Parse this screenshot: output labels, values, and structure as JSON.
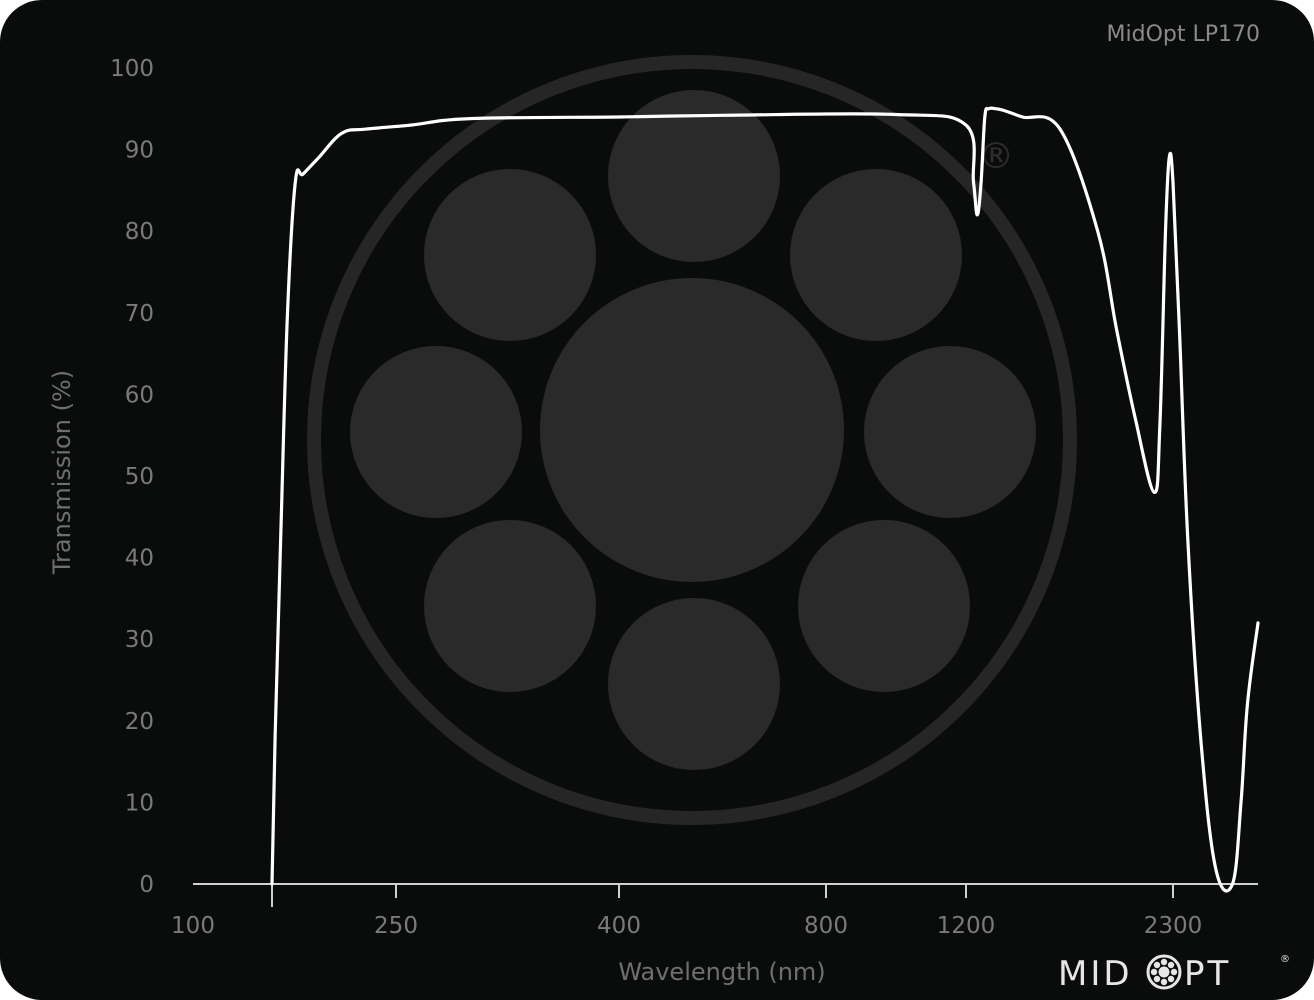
{
  "chart_data": {
    "type": "line",
    "title": "MidOpt LP170",
    "xlabel": "Wavelength (nm)",
    "ylabel": "Transmission (%)",
    "x_ticks": [
      "100",
      "250",
      "400",
      "800",
      "1200",
      "2300"
    ],
    "y_ticks": [
      "0",
      "10",
      "20",
      "30",
      "40",
      "50",
      "60",
      "70",
      "80",
      "90",
      "100"
    ],
    "ylim": [
      0,
      100
    ],
    "x_scale": "non-linear",
    "grid": false,
    "series": [
      {
        "x": [
          170,
          172,
          176,
          180,
          185,
          190,
          200,
          215,
          230,
          260,
          300,
          400,
          600,
          1000,
          1200,
          1240,
          1260,
          1280,
          1300,
          1320,
          1360,
          1400,
          1500,
          1700,
          1900,
          2000,
          2100,
          2200,
          2230,
          2260,
          2280,
          2300,
          2330,
          2370,
          2430,
          2500,
          2580,
          2620,
          2650,
          2700
        ],
        "y": [
          0,
          18,
          45,
          70,
          86,
          87,
          89,
          92,
          92.5,
          93,
          93.8,
          94,
          94.2,
          94.3,
          93,
          86,
          82,
          86,
          94,
          95,
          95,
          94.8,
          94,
          92.5,
          80,
          68,
          57,
          48,
          56,
          80,
          89,
          86,
          68,
          42,
          18,
          2,
          0,
          10,
          22,
          32
        ]
      }
    ]
  },
  "colors": {
    "background": "#0a0c0b",
    "line": "#ffffff",
    "axis": "#d0d0d0",
    "watermark": "#2a2a2a"
  },
  "brand": {
    "logo_text_left": "MID",
    "logo_text_right": "PT",
    "trademark": "®",
    "logo_icon": "midopt-lens-icon"
  }
}
